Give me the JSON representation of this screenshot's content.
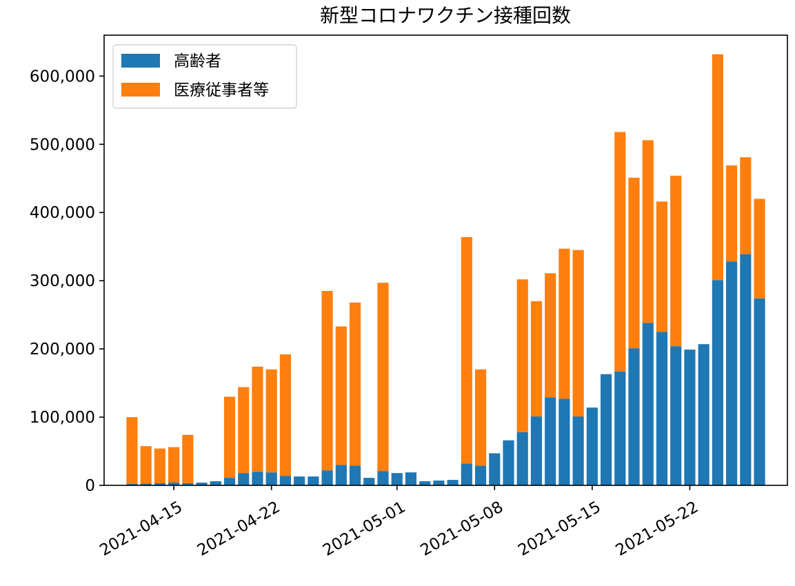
{
  "chart_data": {
    "type": "bar",
    "stacked": true,
    "title": "新型コロナワクチン接種回数",
    "xlabel": "",
    "ylabel": "",
    "ylim": [
      0,
      660000
    ],
    "xlim": [
      "2021-04-10",
      "2021-05-29"
    ],
    "grid": false,
    "legend_position": "upper-left",
    "y_ticks": [
      "0",
      "100,000",
      "200,000",
      "300,000",
      "400,000",
      "500,000",
      "600,000"
    ],
    "y_tick_values": [
      0,
      100000,
      200000,
      300000,
      400000,
      500000,
      600000
    ],
    "x_ticks": [
      "2021-04-15",
      "2021-04-22",
      "2021-05-01",
      "2021-05-08",
      "2021-05-15",
      "2021-05-22"
    ],
    "x": [
      "2021-04-12",
      "2021-04-13",
      "2021-04-14",
      "2021-04-15",
      "2021-04-16",
      "2021-04-17",
      "2021-04-18",
      "2021-04-19",
      "2021-04-20",
      "2021-04-21",
      "2021-04-22",
      "2021-04-23",
      "2021-04-24",
      "2021-04-25",
      "2021-04-26",
      "2021-04-27",
      "2021-04-28",
      "2021-04-29",
      "2021-04-30",
      "2021-05-01",
      "2021-05-02",
      "2021-05-03",
      "2021-05-04",
      "2021-05-05",
      "2021-05-06",
      "2021-05-07",
      "2021-05-08",
      "2021-05-09",
      "2021-05-10",
      "2021-05-11",
      "2021-05-12",
      "2021-05-13",
      "2021-05-14",
      "2021-05-15",
      "2021-05-16",
      "2021-05-17",
      "2021-05-18",
      "2021-05-19",
      "2021-05-20",
      "2021-05-21",
      "2021-05-22",
      "2021-05-23",
      "2021-05-24",
      "2021-05-25",
      "2021-05-26",
      "2021-05-27"
    ],
    "series": [
      {
        "name": "高齢者",
        "color": "#1f77b4",
        "values": [
          2000,
          2500,
          3000,
          4000,
          3000,
          4000,
          6000,
          11000,
          18000,
          20000,
          19000,
          14000,
          13000,
          13000,
          22000,
          30000,
          29000,
          11000,
          21000,
          18000,
          19000,
          6000,
          7000,
          8000,
          32000,
          29000,
          47000,
          66000,
          78000,
          101000,
          129000,
          127000,
          101000,
          114000,
          163000,
          167000,
          201000,
          238000,
          225000,
          204000,
          199000,
          207000,
          301000,
          328000,
          339000,
          274000
        ]
      },
      {
        "name": "医療従事者等",
        "color": "#ff7f0e",
        "values": [
          98000,
          55000,
          51000,
          52000,
          71000,
          0,
          0,
          119000,
          126000,
          154000,
          151000,
          178000,
          0,
          0,
          263000,
          203000,
          239000,
          0,
          276000,
          0,
          0,
          0,
          0,
          0,
          332000,
          141000,
          0,
          0,
          224000,
          169000,
          182000,
          220000,
          244000,
          0,
          0,
          351000,
          250000,
          268000,
          191000,
          250000,
          0,
          0,
          331000,
          141000,
          142000,
          146000
        ]
      }
    ]
  }
}
